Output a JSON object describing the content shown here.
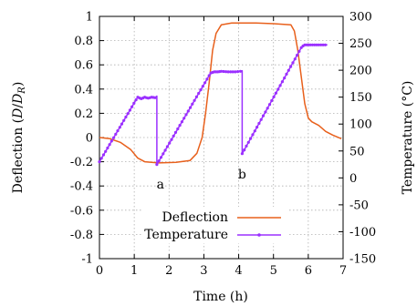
{
  "chart_data": {
    "type": "line",
    "xlabel": "Time (h)",
    "ylabel_left": "Deflection (D/D_R)",
    "ylabel_left_parts": {
      "prefix": "Deflection (",
      "d": "D",
      "slash": "/",
      "d2": "D",
      "sub": "R",
      "suffix": ")"
    },
    "ylabel_right": "Temperature (°C)",
    "xlim": [
      0,
      7
    ],
    "ylim_left": [
      -1,
      1
    ],
    "ylim_right": [
      -150,
      300
    ],
    "x_ticks": [
      "0",
      "1",
      "2",
      "3",
      "4",
      "5",
      "6",
      "7"
    ],
    "y_left_ticks": [
      "-1",
      "-0.8",
      "-0.6",
      "-0.4",
      "-0.2",
      "0",
      "0.2",
      "0.4",
      "0.6",
      "0.8",
      "1"
    ],
    "y_right_ticks": [
      "-150",
      "-100",
      "-50",
      "0",
      "50",
      "100",
      "150",
      "200",
      "250",
      "300"
    ],
    "grid": true,
    "legend_position": "bottom-center",
    "annotations": [
      {
        "text": "a",
        "x": 1.75,
        "y": -0.42
      },
      {
        "text": "b",
        "x": 4.1,
        "y": -0.34
      }
    ],
    "series": [
      {
        "name": "Deflection",
        "axis": "left",
        "color": "#e8601c",
        "x": [
          0,
          0.3,
          0.6,
          0.9,
          1.1,
          1.3,
          1.7,
          2.2,
          2.6,
          2.8,
          2.95,
          3.05,
          3.15,
          3.25,
          3.35,
          3.5,
          3.8,
          4.5,
          5.0,
          5.5,
          5.6,
          5.7,
          5.8,
          5.9,
          6.0,
          6.1,
          6.3,
          6.5,
          6.7,
          6.95
        ],
        "y": [
          0.0,
          -0.01,
          -0.04,
          -0.1,
          -0.17,
          -0.2,
          -0.21,
          -0.205,
          -0.19,
          -0.13,
          0.0,
          0.2,
          0.45,
          0.72,
          0.86,
          0.93,
          0.945,
          0.945,
          0.94,
          0.93,
          0.88,
          0.72,
          0.5,
          0.28,
          0.16,
          0.13,
          0.1,
          0.05,
          0.02,
          -0.01
        ]
      },
      {
        "name": "Temperature",
        "axis": "right",
        "color": "#9b30ff",
        "x": [
          0,
          1.05,
          1.1,
          1.2,
          1.3,
          1.4,
          1.5,
          1.6,
          1.65,
          1.65,
          3.15,
          3.2,
          3.3,
          3.4,
          3.5,
          3.7,
          3.9,
          4.05,
          4.1,
          4.1,
          5.8,
          5.85,
          5.9,
          6.0,
          6.3,
          6.55
        ],
        "y": [
          30,
          145,
          150,
          147,
          150,
          148,
          150,
          149,
          152,
          25,
          190,
          195,
          197,
          197,
          198,
          197,
          197,
          198,
          199,
          45,
          242,
          245,
          247,
          247,
          247,
          247
        ]
      }
    ]
  }
}
